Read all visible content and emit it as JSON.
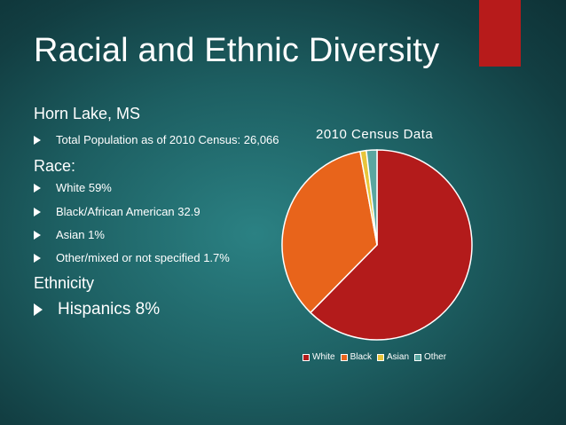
{
  "title": "Racial and Ethnic Diversity",
  "location": "Horn Lake, MS",
  "population_bullet": "Total Population as of 2010 Census: 26,066",
  "race_heading": "Race:",
  "race_items": [
    "White 59%",
    "Black/African American 32.9",
    "Asian 1%",
    "Other/mixed or not specified 1.7%"
  ],
  "ethnicity_heading": "Ethnicity",
  "ethnicity_item": "Hispanics 8%",
  "colors": {
    "accent": "#b71b1b",
    "white": "#b31b1b",
    "black": "#e8641b",
    "asian": "#e8c53a",
    "other": "#5aa6a0"
  },
  "chart_data": {
    "type": "pie",
    "title": "2010 Census Data",
    "categories": [
      "White",
      "Black",
      "Asian",
      "Other"
    ],
    "values": [
      59,
      32.9,
      1,
      1.7
    ],
    "legend": "bottom"
  }
}
